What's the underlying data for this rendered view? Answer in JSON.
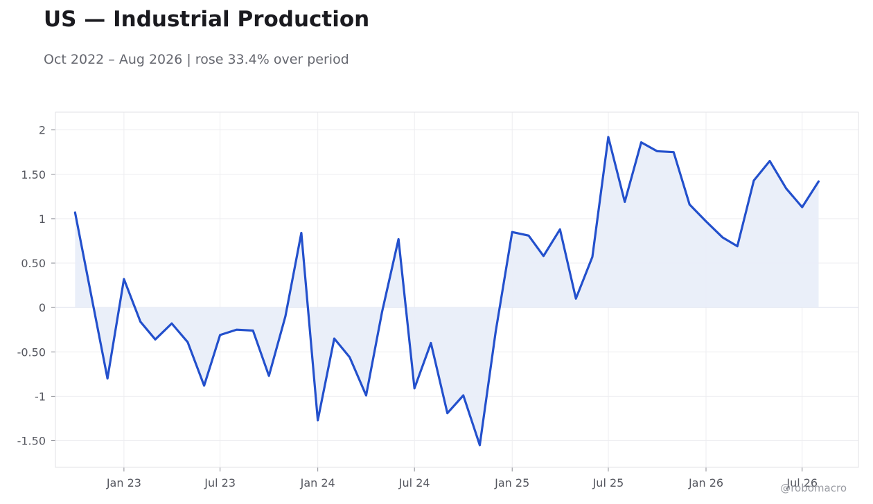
{
  "header": {
    "title": "US — Industrial Production",
    "subtitle": "Oct 2022 – Aug 2026 | rose 33.4% over period"
  },
  "watermark": "@robomacro",
  "colors": {
    "line": "#2350cc",
    "fill": "#e9eef9",
    "grid": "#ededf0",
    "axis_text": "#55575f",
    "frame": "#e2e2e6"
  },
  "chart_data": {
    "type": "area",
    "title": "US — Industrial Production",
    "subtitle": "Oct 2022 – Aug 2026 | rose 33.4% over period",
    "xlabel": "",
    "ylabel": "",
    "grid": true,
    "ylim": [
      -1.8,
      2.2
    ],
    "xlim": [
      "2022-08-25",
      "2026-10-15"
    ],
    "y_ticks": [
      2,
      1.5,
      1,
      0.5,
      0,
      -0.5,
      -1,
      -1.5
    ],
    "y_tick_labels": [
      "2",
      "1.50",
      "1",
      "0.50",
      "0",
      "-0.50",
      "-1",
      "-1.50"
    ],
    "x_ticks": [
      "2023-01-01",
      "2023-07-01",
      "2024-01-01",
      "2024-07-01",
      "2025-01-01",
      "2025-07-01",
      "2026-01-01",
      "2026-07-01"
    ],
    "x_tick_labels": [
      "Jan 23",
      "Jul 23",
      "Jan 24",
      "Jul 24",
      "Jan 25",
      "Jul 25",
      "Jan 26",
      "Jul 26"
    ],
    "series": [
      {
        "x": [
          "2022-10-01",
          "2022-11-01",
          "2022-12-01",
          "2023-01-01",
          "2023-02-01",
          "2023-03-01",
          "2023-04-01",
          "2023-05-01",
          "2023-06-01",
          "2023-07-01",
          "2023-08-01",
          "2023-09-01",
          "2023-10-01",
          "2023-11-01",
          "2023-12-01",
          "2024-01-01",
          "2024-02-01",
          "2024-03-01",
          "2024-04-01",
          "2024-05-01",
          "2024-06-01",
          "2024-07-01",
          "2024-08-01",
          "2024-09-01",
          "2024-10-01",
          "2024-11-01",
          "2024-12-01",
          "2025-01-01",
          "2025-02-01",
          "2025-03-01",
          "2025-04-01",
          "2025-05-01",
          "2025-06-01",
          "2025-07-01",
          "2025-08-01",
          "2025-09-01",
          "2025-10-01",
          "2025-11-01",
          "2025-12-01",
          "2026-01-01",
          "2026-02-01",
          "2026-03-01",
          "2026-04-01",
          "2026-05-01",
          "2026-06-01",
          "2026-07-01",
          "2026-08-01"
        ],
        "values": [
          1.07,
          0.12,
          -0.8,
          0.32,
          -0.16,
          -0.36,
          -0.18,
          -0.39,
          -0.88,
          -0.31,
          -0.25,
          -0.26,
          -0.77,
          -0.1,
          0.84,
          -1.27,
          -0.35,
          -0.56,
          -0.99,
          -0.05,
          0.77,
          -0.91,
          -0.4,
          -1.19,
          -0.99,
          -1.55,
          -0.27,
          0.85,
          0.81,
          0.58,
          0.88,
          0.1,
          0.57,
          1.92,
          1.19,
          1.86,
          1.76,
          1.75,
          1.16,
          0.97,
          0.79,
          0.69,
          1.43,
          1.65,
          1.34,
          1.13,
          1.42
        ]
      }
    ]
  }
}
